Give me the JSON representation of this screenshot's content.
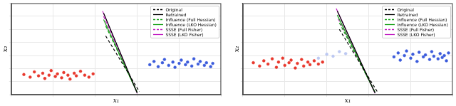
{
  "chart_data": [
    {
      "type": "scatter",
      "xlabel": "x₁",
      "ylabel": "x₂",
      "xlim": [
        0,
        10
      ],
      "ylim": [
        0,
        14
      ],
      "xticks": [
        0,
        2,
        4,
        6,
        8,
        10
      ],
      "yticks": [
        0,
        2,
        4,
        6,
        8,
        10,
        12,
        14
      ],
      "grid": true,
      "tick_labels": false,
      "legend": "upper right",
      "series": [
        {
          "type": "scatter",
          "marker": "o",
          "color": "#e8372c",
          "x": [
            0.6,
            0.9,
            1.1,
            1.3,
            1.5,
            1.6,
            1.8,
            1.9,
            2.1,
            2.2,
            2.4,
            2.5,
            2.7,
            2.8,
            3.0,
            3.1,
            3.3,
            3.5,
            3.7,
            3.9
          ],
          "values": [
            3.1,
            2.7,
            3.5,
            2.9,
            3.3,
            2.5,
            3.0,
            3.7,
            2.8,
            3.2,
            2.6,
            3.4,
            3.0,
            2.4,
            3.3,
            2.9,
            3.6,
            3.0,
            2.7,
            3.2
          ]
        },
        {
          "type": "scatter",
          "marker": "o",
          "color": "#3b5bdb",
          "x": [
            6.6,
            6.8,
            7.0,
            7.2,
            7.3,
            7.5,
            7.7,
            7.8,
            8.0,
            8.1,
            8.3,
            8.4,
            8.6,
            8.7,
            8.9,
            9.0,
            9.2,
            9.3,
            9.5,
            9.6
          ],
          "values": [
            4.6,
            5.1,
            4.3,
            4.9,
            5.4,
            4.5,
            5.0,
            4.2,
            4.8,
            5.3,
            4.6,
            5.0,
            4.4,
            5.5,
            4.7,
            5.1,
            4.5,
            4.9,
            4.3,
            4.8
          ]
        },
        {
          "name": "Original",
          "type": "line",
          "color": "#000000",
          "line_style": "dashed",
          "x": [
            4.5,
            6.1
          ],
          "values": [
            9.0,
            0.5
          ]
        },
        {
          "name": "Retrained",
          "type": "line",
          "color": "#000000",
          "line_style": "solid",
          "x": [
            4.4,
            6.0
          ],
          "values": [
            12.5,
            0.3
          ]
        },
        {
          "name": "Influence (Full Hessian)",
          "type": "line",
          "color": "#1aa01a",
          "line_style": "dashed",
          "x": [
            4.5,
            6.0
          ],
          "values": [
            10.5,
            0.4
          ]
        },
        {
          "name": "Influence (LKO Hessian)",
          "type": "line",
          "color": "#1aa01a",
          "line_style": "solid",
          "x": [
            4.4,
            6.0
          ],
          "values": [
            11.5,
            0.3
          ]
        },
        {
          "name": "SSSE (Full Fisher)",
          "type": "line",
          "color": "#c21fc2",
          "line_style": "dashed",
          "x": [
            4.4,
            6.0
          ],
          "values": [
            12.0,
            0.3
          ]
        },
        {
          "name": "SSSE (LKO Fisher)",
          "type": "line",
          "color": "#c21fc2",
          "line_style": "solid",
          "x": [
            4.35,
            6.0
          ],
          "values": [
            12.8,
            0.2
          ]
        }
      ]
    },
    {
      "type": "scatter",
      "xlabel": "x₁",
      "ylabel": "x₂",
      "xlim": [
        0,
        10
      ],
      "ylim": [
        0,
        14
      ],
      "xticks": [
        0,
        2,
        4,
        6,
        8,
        10
      ],
      "yticks": [
        0,
        2,
        4,
        6,
        8,
        10,
        12,
        14
      ],
      "grid": true,
      "tick_labels": false,
      "legend": "upper right",
      "series": [
        {
          "type": "scatter",
          "marker": "o",
          "color": "#e8372c",
          "x": [
            0.5,
            0.8,
            1.0,
            1.2,
            1.4,
            1.6,
            1.7,
            1.9,
            2.0,
            2.2,
            2.3,
            2.5,
            2.6,
            2.8,
            2.9,
            3.1,
            3.2,
            3.4,
            3.6,
            3.8
          ],
          "values": [
            4.9,
            4.4,
            5.2,
            4.7,
            5.5,
            4.2,
            5.0,
            5.6,
            4.5,
            4.9,
            5.3,
            4.1,
            4.8,
            5.4,
            4.4,
            5.0,
            4.6,
            5.2,
            4.7,
            5.0
          ]
        },
        {
          "type": "scatter",
          "marker": "o",
          "color": "#bcc8f2",
          "x": [
            3.6,
            4.0,
            4.3,
            4.6,
            4.9
          ],
          "values": [
            5.6,
            6.2,
            5.9,
            6.6,
            6.3
          ]
        },
        {
          "type": "scatter",
          "marker": "o",
          "color": "#3b5bdb",
          "x": [
            7.2,
            7.4,
            7.5,
            7.7,
            7.8,
            8.0,
            8.1,
            8.3,
            8.4,
            8.6,
            8.7,
            8.9,
            9.0,
            9.1,
            9.3,
            9.4,
            9.5,
            9.6,
            9.7,
            9.8
          ],
          "values": [
            5.8,
            6.4,
            5.3,
            6.0,
            6.7,
            5.6,
            6.2,
            5.1,
            6.5,
            5.8,
            6.1,
            5.4,
            6.6,
            5.9,
            5.5,
            6.3,
            5.7,
            6.0,
            5.2,
            6.4
          ]
        },
        {
          "name": "Original",
          "type": "line",
          "color": "#000000",
          "line_style": "dashed",
          "x": [
            4.6,
            6.4
          ],
          "values": [
            10.0,
            0.5
          ]
        },
        {
          "name": "Retrained",
          "type": "line",
          "color": "#000000",
          "line_style": "solid",
          "x": [
            4.5,
            6.3
          ],
          "values": [
            12.8,
            0.3
          ]
        },
        {
          "name": "Influence (Full Hessian)",
          "type": "line",
          "color": "#1aa01a",
          "line_style": "dashed",
          "x": [
            4.6,
            6.3
          ],
          "values": [
            11.0,
            0.4
          ]
        },
        {
          "name": "Influence (LKO Hessian)",
          "type": "line",
          "color": "#1aa01a",
          "line_style": "solid",
          "x": [
            4.5,
            6.3
          ],
          "values": [
            12.2,
            0.3
          ]
        },
        {
          "name": "SSSE (Full Fisher)",
          "type": "line",
          "color": "#c21fc2",
          "line_style": "dashed",
          "x": [
            4.55,
            6.3
          ],
          "values": [
            11.6,
            0.3
          ]
        },
        {
          "name": "SSSE (LKO Fisher)",
          "type": "line",
          "color": "#c21fc2",
          "line_style": "solid",
          "x": [
            4.45,
            6.3
          ],
          "values": [
            13.2,
            0.2
          ]
        }
      ]
    }
  ]
}
